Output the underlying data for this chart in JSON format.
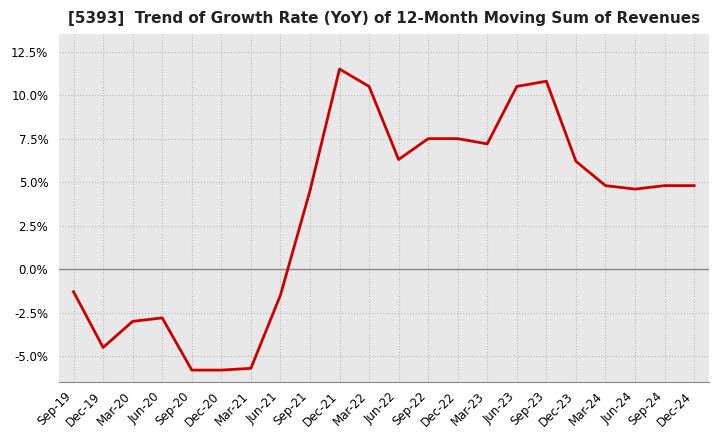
{
  "title": "[5393]  Trend of Growth Rate (YoY) of 12-Month Moving Sum of Revenues",
  "x_labels": [
    "Sep-19",
    "Dec-19",
    "Mar-20",
    "Jun-20",
    "Sep-20",
    "Dec-20",
    "Mar-21",
    "Jun-21",
    "Sep-21",
    "Dec-21",
    "Mar-22",
    "Jun-22",
    "Sep-22",
    "Dec-22",
    "Mar-23",
    "Jun-23",
    "Sep-23",
    "Dec-23",
    "Mar-24",
    "Jun-24",
    "Sep-24",
    "Dec-24"
  ],
  "y_values": [
    -1.3,
    -4.5,
    -3.0,
    -2.8,
    -5.8,
    -5.8,
    -5.7,
    -1.5,
    4.5,
    11.5,
    10.5,
    6.3,
    7.5,
    7.5,
    7.2,
    10.5,
    10.8,
    6.2,
    4.8,
    4.6,
    4.8,
    4.8
  ],
  "line_color": "#cc0000",
  "line_width": 2.0,
  "ylim": [
    -6.5,
    13.5
  ],
  "yticks": [
    -5.0,
    -2.5,
    0.0,
    2.5,
    5.0,
    7.5,
    10.0,
    12.5
  ],
  "background_color": "#ffffff",
  "plot_bg_color": "#e8e8e8",
  "grid_color": "#bbbbbb",
  "zero_line_color": "#888888",
  "title_fontsize": 11,
  "tick_fontsize": 8.5
}
